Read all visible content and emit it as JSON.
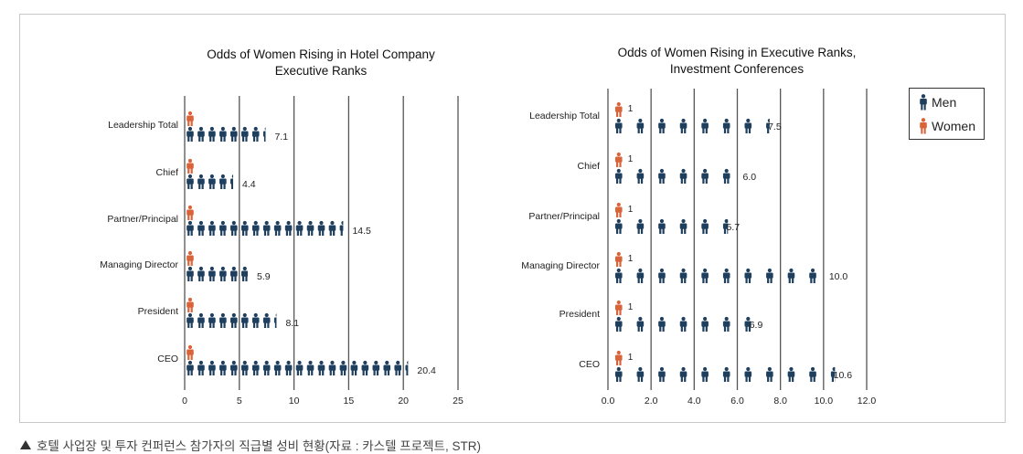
{
  "caption": "호텔 사업장 및 투자 컨퍼런스 참가자의 직급별 성비 현황(자료 : 카스텔 프로젝트, STR)",
  "legend": {
    "men": "Men",
    "women": "Women"
  },
  "colors": {
    "men": "#1f3f5f",
    "women": "#d9643a",
    "grid": "#555555",
    "text": "#222222"
  },
  "chart_data": [
    {
      "type": "pictograph",
      "title": [
        "Odds of Women Rising in Hotel Company",
        "Executive Ranks"
      ],
      "categories": [
        "Leadership Total",
        "Chief",
        "Partner/Principal",
        "Managing Director",
        "President",
        "CEO"
      ],
      "series": [
        {
          "name": "Women",
          "values": [
            1,
            1,
            1,
            1,
            1,
            1
          ]
        },
        {
          "name": "Men",
          "values": [
            7.1,
            4.4,
            14.5,
            5.9,
            8.1,
            20.4
          ]
        }
      ],
      "value_labels": [
        "7.1",
        "4.4",
        "14.5",
        "5.9",
        "8.1",
        "20.4"
      ],
      "xlim": [
        0,
        25
      ],
      "xticks": [
        0,
        5,
        10,
        15,
        20,
        25
      ],
      "xtick_labels": [
        "0",
        "5",
        "10",
        "15",
        "20",
        "25"
      ],
      "grid": true
    },
    {
      "type": "pictograph",
      "title": [
        "Odds of Women Rising in Executive Ranks,",
        "Investment Conferences"
      ],
      "categories": [
        "Leadership Total",
        "Chief",
        "Partner/Principal",
        "Managing Director",
        "President",
        "CEO"
      ],
      "series": [
        {
          "name": "Women",
          "values": [
            1,
            1,
            1,
            1,
            1,
            1
          ]
        },
        {
          "name": "Men",
          "values": [
            7.5,
            6.0,
            5.7,
            10.0,
            6.9,
            10.6
          ]
        }
      ],
      "women_labels": [
        "1",
        "1",
        "1",
        "1",
        "1",
        "1"
      ],
      "value_labels": [
        "7.5",
        "6.0",
        "5.7",
        "10.0",
        "6.9",
        "10.6"
      ],
      "xlim": [
        0,
        12
      ],
      "xticks": [
        0,
        2,
        4,
        6,
        8,
        10,
        12
      ],
      "xtick_labels": [
        "0.0",
        "2.0",
        "4.0",
        "6.0",
        "8.0",
        "10.0",
        "12.0"
      ],
      "grid": true
    }
  ]
}
